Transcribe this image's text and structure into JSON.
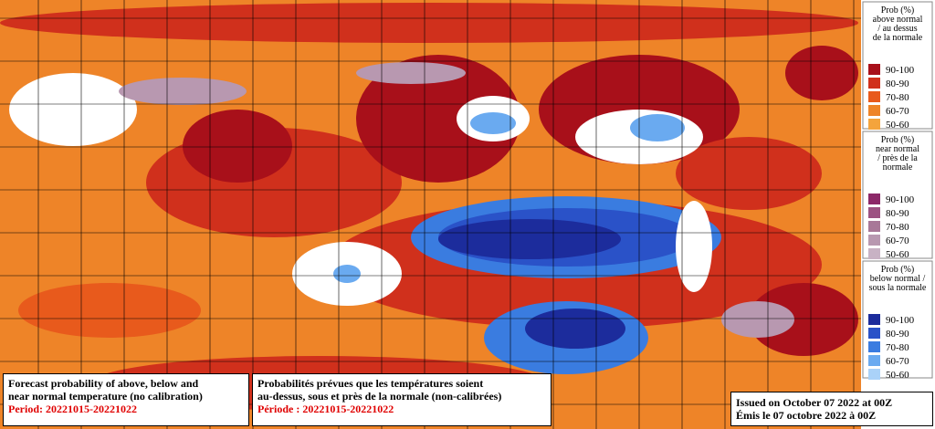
{
  "legend": [
    {
      "title": [
        "Prob (%)",
        "above normal",
        "/ au dessus",
        "de la normale"
      ],
      "items": [
        {
          "label": "90-100",
          "color": "#a8101a"
        },
        {
          "label": "80-90",
          "color": "#d0301c"
        },
        {
          "label": "70-80",
          "color": "#e85a1c"
        },
        {
          "label": "60-70",
          "color": "#ee8428"
        },
        {
          "label": "50-60",
          "color": "#f4a43c"
        }
      ]
    },
    {
      "title": [
        "Prob (%)",
        "near normal",
        "/ près de la",
        "normale"
      ],
      "items": [
        {
          "label": "90-100",
          "color": "#8c2868"
        },
        {
          "label": "80-90",
          "color": "#9c5282"
        },
        {
          "label": "70-80",
          "color": "#a87898"
        },
        {
          "label": "60-70",
          "color": "#b898b0"
        },
        {
          "label": "50-60",
          "color": "#c8b2c4"
        }
      ]
    },
    {
      "title": [
        "Prob (%)",
        "below normal /",
        "sous la normale"
      ],
      "items": [
        {
          "label": "90-100",
          "color": "#1c2c9c"
        },
        {
          "label": "80-90",
          "color": "#2a52c8"
        },
        {
          "label": "70-80",
          "color": "#3a7ce0"
        },
        {
          "label": "60-70",
          "color": "#6aaaf0"
        },
        {
          "label": "50-60",
          "color": "#aad2f8"
        }
      ]
    }
  ],
  "caption_en": {
    "lines": [
      "Forecast probability of above, below and",
      "near normal temperature (no calibration)"
    ],
    "period": "Period: 20221015-20221022"
  },
  "caption_fr": {
    "lines": [
      "Probabilités prévues que les températures soient",
      "au-dessus, sous et près de la normale (non-calibrées)"
    ],
    "period": "Période : 20221015-20221022"
  },
  "issued": [
    "Issued on October 07 2022 at 00Z",
    "Émis le 07 octobre 2022 à 00Z"
  ]
}
